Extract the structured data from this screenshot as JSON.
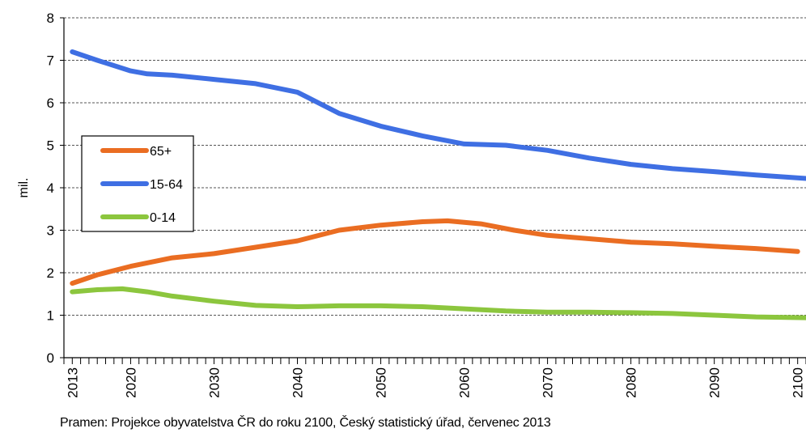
{
  "chart_data": {
    "type": "line",
    "title": "",
    "xlabel": "",
    "ylabel": "mil.",
    "xlim": [
      2012,
      2101
    ],
    "ylim": [
      0,
      8
    ],
    "y_ticks": [
      0,
      1,
      2,
      3,
      4,
      5,
      6,
      7,
      8
    ],
    "x_tick_labels": [
      "2013",
      "2020",
      "2030",
      "2040",
      "2050",
      "2060",
      "2070",
      "2080",
      "2090",
      "2100"
    ],
    "grid": true,
    "legend_position": "left",
    "legend": [
      "65+",
      "15-64",
      "0-14"
    ],
    "series": [
      {
        "name": "65+",
        "color": "#ea6d22",
        "points": [
          [
            2013,
            1.75
          ],
          [
            2016,
            1.95
          ],
          [
            2020,
            2.15
          ],
          [
            2025,
            2.35
          ],
          [
            2030,
            2.45
          ],
          [
            2035,
            2.6
          ],
          [
            2040,
            2.75
          ],
          [
            2045,
            3.0
          ],
          [
            2050,
            3.12
          ],
          [
            2055,
            3.2
          ],
          [
            2058,
            3.22
          ],
          [
            2062,
            3.15
          ],
          [
            2066,
            3.0
          ],
          [
            2070,
            2.88
          ],
          [
            2075,
            2.8
          ],
          [
            2080,
            2.72
          ],
          [
            2085,
            2.68
          ],
          [
            2090,
            2.62
          ],
          [
            2095,
            2.57
          ],
          [
            2100,
            2.5
          ]
        ]
      },
      {
        "name": "15-64",
        "color": "#3f6fe3",
        "points": [
          [
            2013,
            7.2
          ],
          [
            2016,
            7.0
          ],
          [
            2020,
            6.75
          ],
          [
            2022,
            6.68
          ],
          [
            2025,
            6.65
          ],
          [
            2030,
            6.55
          ],
          [
            2035,
            6.45
          ],
          [
            2040,
            6.25
          ],
          [
            2045,
            5.75
          ],
          [
            2050,
            5.45
          ],
          [
            2055,
            5.22
          ],
          [
            2060,
            5.03
          ],
          [
            2065,
            5.0
          ],
          [
            2070,
            4.88
          ],
          [
            2075,
            4.7
          ],
          [
            2080,
            4.55
          ],
          [
            2085,
            4.45
          ],
          [
            2090,
            4.38
          ],
          [
            2095,
            4.3
          ],
          [
            2101,
            4.22
          ]
        ]
      },
      {
        "name": "0-14",
        "color": "#8cc63e",
        "points": [
          [
            2013,
            1.55
          ],
          [
            2016,
            1.6
          ],
          [
            2019,
            1.62
          ],
          [
            2022,
            1.55
          ],
          [
            2025,
            1.45
          ],
          [
            2030,
            1.33
          ],
          [
            2035,
            1.23
          ],
          [
            2040,
            1.2
          ],
          [
            2045,
            1.22
          ],
          [
            2050,
            1.22
          ],
          [
            2055,
            1.2
          ],
          [
            2060,
            1.15
          ],
          [
            2065,
            1.1
          ],
          [
            2070,
            1.07
          ],
          [
            2075,
            1.07
          ],
          [
            2080,
            1.06
          ],
          [
            2085,
            1.04
          ],
          [
            2090,
            1.0
          ],
          [
            2095,
            0.96
          ],
          [
            2101,
            0.94
          ]
        ]
      }
    ]
  },
  "source_note": "Pramen: Projekce obyvatelstva ČR do roku 2100, Český statistický úřad, červenec 2013"
}
